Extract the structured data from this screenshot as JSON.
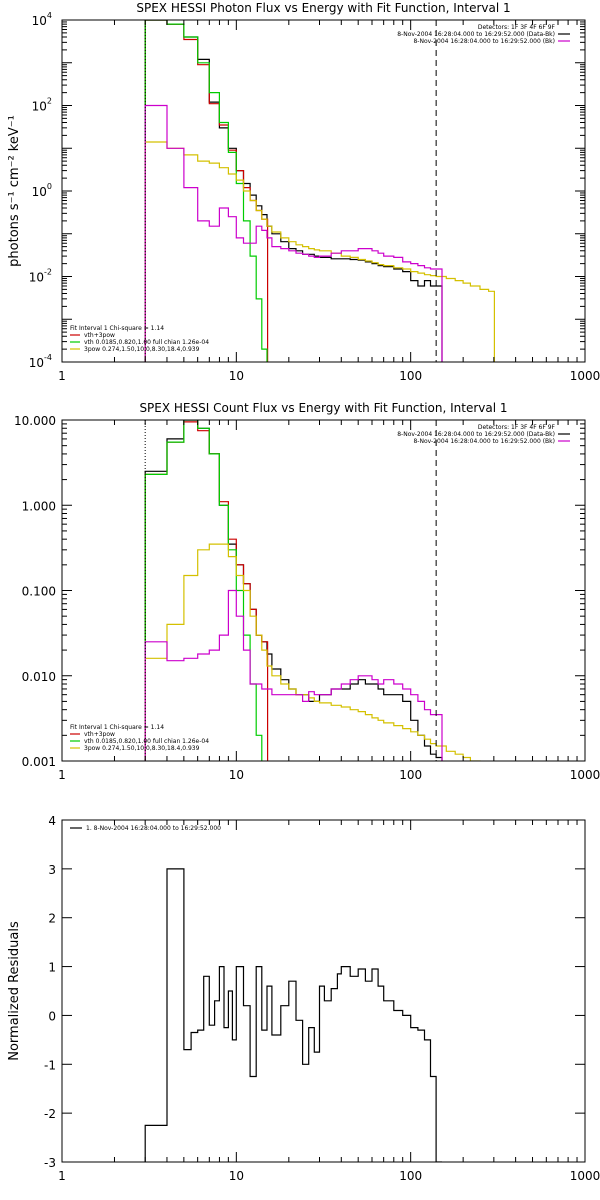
{
  "colors": {
    "black": "#000000",
    "red": "#cc0000",
    "green": "#00cc00",
    "magenta": "#cc00cc",
    "yellow": "#d4c000",
    "orange": "#ff8000"
  },
  "chart_data": [
    {
      "type": "line",
      "title": "SPEX HESSI Photon Flux vs Energy with Fit Function, Interval 1",
      "ylabel": "photons s⁻¹ cm⁻² keV⁻¹",
      "xlabel": "",
      "xscale": "log",
      "yscale": "log",
      "xlim": [
        1,
        1000
      ],
      "ylim": [
        0.0001,
        10000
      ],
      "x_ticks": [
        1,
        10,
        100,
        1000
      ],
      "x_tick_labels": [
        "1",
        "10",
        "100",
        "1000"
      ],
      "y_ticks": [
        0.0001,
        0.01,
        1,
        100,
        10000
      ],
      "y_tick_base": [
        "10",
        "10",
        "10",
        "10",
        "10"
      ],
      "y_tick_exp": [
        "-4",
        "-2",
        "0",
        "2",
        "4"
      ],
      "vlines": [
        {
          "x": 3,
          "style": "dotted",
          "color": "black"
        },
        {
          "x": 140,
          "style": "dashed",
          "color": "black"
        }
      ],
      "legend_top": {
        "header": "Detectors: 1F 3F 4F 6F 9F",
        "entries": [
          {
            "label": "8-Nov-2004 16:28:04.000 to 16:29:52.000 (Data-Bk)",
            "color": "black"
          },
          {
            "label": "8-Nov-2004 16:28:04.000 to 16:29:52.000 (Bk)",
            "color": "magenta"
          }
        ]
      },
      "legend_bottom": {
        "header": "Fit Interval 1    Chi-square = 1.14",
        "entries": [
          {
            "label": "vth+3pow",
            "color": "red"
          },
          {
            "label": "vth 0.0185,0.820,1.00  full chian 1.26e-04",
            "color": "green"
          },
          {
            "label": "3pow 0.274,1.50,10.0,8.30,18.4,0.939",
            "color": "yellow"
          }
        ]
      },
      "series": [
        {
          "name": "Data-Bk",
          "color": "black",
          "x": [
            3,
            3.5,
            4,
            4.5,
            5,
            5.5,
            6,
            6.5,
            7,
            7.5,
            8,
            8.5,
            9,
            9.5,
            10,
            11,
            12,
            13,
            14,
            15,
            16,
            18,
            20,
            22,
            24,
            26,
            28,
            30,
            35,
            40,
            45,
            50,
            55,
            60,
            65,
            70,
            80,
            90,
            100,
            110,
            120,
            130,
            140
          ],
          "y": [
            10000,
            10000,
            8000,
            8000,
            4000,
            4000,
            1200,
            1200,
            120,
            120,
            30,
            30,
            10,
            10,
            3,
            1.5,
            0.8,
            0.45,
            0.28,
            0.15,
            0.1,
            0.065,
            0.045,
            0.04,
            0.033,
            0.033,
            0.03,
            0.028,
            0.026,
            0.026,
            0.025,
            0.024,
            0.022,
            0.02,
            0.018,
            0.017,
            0.015,
            0.013,
            0.008,
            0.006,
            0.008,
            0.006,
            0.006
          ]
        },
        {
          "name": "vth+3pow",
          "color": "red",
          "x": [
            3,
            3.5,
            4,
            4.5,
            5,
            5.5,
            6,
            6.5,
            7,
            7.5,
            8,
            8.5,
            9,
            9.5,
            10,
            11,
            12,
            13,
            14
          ],
          "y": [
            10000,
            10000,
            8000,
            8000,
            3500,
            3500,
            900,
            900,
            110,
            110,
            35,
            35,
            9,
            9,
            3,
            1.2,
            0.6,
            0.35,
            0.22
          ]
        },
        {
          "name": "vth",
          "color": "green",
          "x": [
            3,
            3.5,
            4,
            4.5,
            5,
            5.5,
            6,
            6.5,
            7,
            7.5,
            8,
            8.5,
            9,
            9.5,
            10,
            11,
            12,
            13,
            14,
            15
          ],
          "y": [
            10000,
            10000,
            8000,
            8000,
            4000,
            4000,
            1000,
            1000,
            200,
            200,
            40,
            40,
            8,
            8,
            1.5,
            0.2,
            0.03,
            0.003,
            0.0002,
            3e-05
          ]
        },
        {
          "name": "3pow",
          "color": "yellow",
          "x": [
            3,
            3.5,
            4,
            4.5,
            5,
            5.5,
            6,
            6.5,
            7,
            7.5,
            8,
            8.5,
            9,
            9.5,
            10,
            11,
            12,
            13,
            14,
            15,
            16,
            18,
            20,
            22,
            24,
            26,
            28,
            30,
            35,
            40,
            45,
            50,
            55,
            60,
            65,
            70,
            80,
            90,
            100,
            110,
            120,
            130,
            140,
            160,
            180,
            200,
            220,
            250,
            280
          ],
          "y": [
            14,
            14,
            10,
            10,
            7,
            7,
            5,
            5,
            4.5,
            4.5,
            3.5,
            3.5,
            2.5,
            2.5,
            1.8,
            1.0,
            0.6,
            0.35,
            0.22,
            0.15,
            0.11,
            0.08,
            0.065,
            0.055,
            0.05,
            0.045,
            0.042,
            0.04,
            0.035,
            0.03,
            0.028,
            0.025,
            0.023,
            0.021,
            0.019,
            0.018,
            0.016,
            0.015,
            0.013,
            0.012,
            0.011,
            0.0105,
            0.01,
            0.009,
            0.008,
            0.007,
            0.006,
            0.005,
            0.0045
          ]
        },
        {
          "name": "Bk",
          "color": "magenta",
          "x": [
            3,
            3.5,
            4,
            4.5,
            5,
            5.5,
            6,
            6.5,
            7,
            7.5,
            8,
            8.5,
            9,
            9.5,
            10,
            11,
            12,
            13,
            14,
            15,
            16,
            18,
            20,
            22,
            24,
            26,
            28,
            30,
            35,
            40,
            45,
            50,
            55,
            60,
            65,
            70,
            80,
            90,
            100,
            110,
            120,
            130,
            140
          ],
          "y": [
            100,
            100,
            10,
            10,
            1.2,
            1.2,
            0.2,
            0.2,
            0.15,
            0.15,
            0.4,
            0.4,
            0.25,
            0.25,
            0.08,
            0.06,
            0.06,
            0.15,
            0.12,
            0.08,
            0.05,
            0.045,
            0.04,
            0.035,
            0.033,
            0.03,
            0.028,
            0.03,
            0.035,
            0.04,
            0.04,
            0.045,
            0.045,
            0.04,
            0.035,
            0.03,
            0.028,
            0.022,
            0.02,
            0.018,
            0.016,
            0.015,
            0.015
          ]
        }
      ]
    },
    {
      "type": "line",
      "title": "SPEX HESSI Count Flux vs Energy with Fit Function, Interval 1",
      "xlabel": "",
      "ylabel": "",
      "xscale": "log",
      "yscale": "log",
      "xlim": [
        1,
        1000
      ],
      "ylim": [
        0.001,
        10
      ],
      "x_ticks": [
        1,
        10,
        100,
        1000
      ],
      "x_tick_labels": [
        "1",
        "10",
        "100",
        "1000"
      ],
      "y_ticks": [
        0.001,
        0.01,
        0.1,
        1,
        10
      ],
      "y_tick_labels": [
        "0.001",
        "0.010",
        "0.100",
        "1.000",
        "10.000"
      ],
      "vlines": [
        {
          "x": 3,
          "style": "dotted",
          "color": "black"
        },
        {
          "x": 140,
          "style": "dashed",
          "color": "black"
        }
      ],
      "legend_top": {
        "header": "Detectors: 1F 3F 4F 6F 9F",
        "entries": [
          {
            "label": "8-Nov-2004 16:28:04.000 to 16:29:52.000 (Data-Bk)",
            "color": "black"
          },
          {
            "label": "8-Nov-2004 16:28:04.000 to 16:29:52.000 (Bk)",
            "color": "magenta"
          }
        ]
      },
      "legend_bottom": {
        "header": "Fit Interval 1    Chi-square = 1.14",
        "entries": [
          {
            "label": "vth+3pow",
            "color": "red"
          },
          {
            "label": "vth 0.0185,0.820,1.00  full chian 1.26e-04",
            "color": "green"
          },
          {
            "label": "3pow 0.274,1.50,10.0,8.30,18.4,0.939",
            "color": "yellow"
          }
        ]
      },
      "series": [
        {
          "name": "Data-Bk",
          "color": "black",
          "x": [
            3,
            3.5,
            4,
            4.5,
            5,
            5.5,
            6,
            6.5,
            7,
            7.5,
            8,
            8.5,
            9,
            9.5,
            10,
            11,
            12,
            13,
            14,
            15,
            16,
            18,
            20,
            22,
            24,
            26,
            28,
            30,
            35,
            40,
            45,
            50,
            55,
            60,
            65,
            70,
            80,
            90,
            100,
            110,
            120,
            130,
            140
          ],
          "y": [
            2.5,
            2.5,
            6,
            6,
            10,
            10,
            8,
            8,
            4,
            4,
            1.0,
            1.0,
            0.35,
            0.35,
            0.2,
            0.12,
            0.06,
            0.03,
            0.025,
            0.018,
            0.012,
            0.009,
            0.007,
            0.006,
            0.006,
            0.005,
            0.005,
            0.006,
            0.007,
            0.007,
            0.008,
            0.009,
            0.008,
            0.008,
            0.007,
            0.006,
            0.006,
            0.005,
            0.003,
            0.002,
            0.0015,
            0.0012,
            0.0011
          ]
        },
        {
          "name": "vth+3pow",
          "color": "red",
          "x": [
            3,
            3.5,
            4,
            4.5,
            5,
            5.5,
            6,
            6.5,
            7,
            7.5,
            8,
            8.5,
            9,
            9.5,
            10,
            11,
            12,
            13,
            14
          ],
          "y": [
            2.3,
            2.3,
            5.5,
            5.5,
            9.5,
            9.5,
            7.5,
            7.5,
            4,
            4,
            1.1,
            1.1,
            0.4,
            0.4,
            0.2,
            0.12,
            0.06,
            0.03,
            0.025
          ]
        },
        {
          "name": "vth",
          "color": "green",
          "x": [
            3,
            3.5,
            4,
            4.5,
            5,
            5.5,
            6,
            6.5,
            7,
            7.5,
            8,
            8.5,
            9,
            9.5,
            10,
            11,
            12,
            13,
            14
          ],
          "y": [
            2.3,
            2.3,
            5.5,
            5.5,
            10,
            10,
            8,
            8,
            4,
            4,
            1.0,
            1.0,
            0.3,
            0.3,
            0.1,
            0.03,
            0.008,
            0.002,
            0.0008
          ]
        },
        {
          "name": "3pow",
          "color": "yellow",
          "x": [
            3,
            3.5,
            4,
            4.5,
            5,
            5.5,
            6,
            6.5,
            7,
            7.5,
            8,
            8.5,
            9,
            9.5,
            10,
            11,
            12,
            13,
            14,
            15,
            16,
            18,
            20,
            22,
            24,
            26,
            28,
            30,
            35,
            40,
            45,
            50,
            55,
            60,
            65,
            70,
            80,
            90,
            100,
            110,
            120,
            130,
            140,
            160,
            180,
            200,
            220,
            250
          ],
          "y": [
            0.016,
            0.016,
            0.04,
            0.04,
            0.15,
            0.15,
            0.3,
            0.3,
            0.35,
            0.35,
            0.35,
            0.35,
            0.25,
            0.25,
            0.15,
            0.1,
            0.05,
            0.03,
            0.02,
            0.013,
            0.01,
            0.008,
            0.007,
            0.006,
            0.006,
            0.0055,
            0.005,
            0.0048,
            0.0045,
            0.0043,
            0.004,
            0.0038,
            0.0035,
            0.0032,
            0.003,
            0.0028,
            0.0026,
            0.0024,
            0.0022,
            0.002,
            0.0018,
            0.0016,
            0.0015,
            0.0013,
            0.0012,
            0.0011,
            0.001,
            0.0009
          ]
        },
        {
          "name": "Bk",
          "color": "magenta",
          "x": [
            3,
            3.5,
            4,
            4.5,
            5,
            5.5,
            6,
            6.5,
            7,
            7.5,
            8,
            8.5,
            9,
            9.5,
            10,
            11,
            12,
            13,
            14,
            15,
            16,
            18,
            20,
            22,
            24,
            26,
            28,
            30,
            35,
            40,
            45,
            50,
            55,
            60,
            65,
            70,
            80,
            90,
            100,
            110,
            120,
            130,
            140
          ],
          "y": [
            0.025,
            0.025,
            0.015,
            0.015,
            0.016,
            0.016,
            0.018,
            0.018,
            0.02,
            0.02,
            0.03,
            0.03,
            0.1,
            0.1,
            0.05,
            0.02,
            0.008,
            0.008,
            0.007,
            0.007,
            0.006,
            0.006,
            0.006,
            0.006,
            0.005,
            0.0065,
            0.006,
            0.006,
            0.007,
            0.008,
            0.009,
            0.01,
            0.01,
            0.009,
            0.008,
            0.009,
            0.008,
            0.007,
            0.006,
            0.005,
            0.004,
            0.0035,
            0.0035
          ]
        }
      ]
    },
    {
      "type": "line",
      "title": "",
      "ylabel": "Normalized Residuals",
      "xlabel": "",
      "xscale": "log",
      "xlim": [
        1,
        1000
      ],
      "ylim": [
        -3,
        4
      ],
      "x_ticks": [
        1,
        10,
        100,
        1000
      ],
      "x_tick_labels": [
        "1",
        "10",
        "100",
        "1000"
      ],
      "y_ticks": [
        -3,
        -2,
        -1,
        0,
        1,
        2,
        3,
        4
      ],
      "y_tick_labels": [
        "-3",
        "-2",
        "-1",
        "0",
        "1",
        "2",
        "3",
        "4"
      ],
      "legend_top": {
        "entries": [
          {
            "label": "1. 8-Nov-2004 16:28:04.000 to 16:29:52.000",
            "color": "black"
          }
        ]
      },
      "series": [
        {
          "name": "residuals",
          "color": "black",
          "x": [
            3,
            4,
            5,
            5.5,
            6,
            6.5,
            7,
            7.5,
            8,
            8.5,
            9,
            9.5,
            10,
            11,
            12,
            13,
            14,
            15,
            16,
            18,
            20,
            22,
            24,
            26,
            28,
            30,
            32,
            35,
            38,
            40,
            45,
            50,
            55,
            60,
            65,
            70,
            80,
            90,
            100,
            110,
            120,
            130,
            140
          ],
          "y": [
            -2.25,
            3.0,
            -0.7,
            -0.35,
            -0.3,
            0.8,
            -0.2,
            0.3,
            1.0,
            -0.25,
            0.5,
            -0.5,
            1.0,
            0.2,
            -1.25,
            1.0,
            -0.3,
            0.6,
            -0.4,
            0.2,
            0.7,
            -0.1,
            -1.0,
            -0.25,
            -0.75,
            0.6,
            0.3,
            0.55,
            0.85,
            1.0,
            0.8,
            0.95,
            0.7,
            0.95,
            0.6,
            0.3,
            0.1,
            0.0,
            -0.25,
            -0.3,
            -0.5,
            -1.25,
            -3.0
          ]
        }
      ]
    }
  ]
}
